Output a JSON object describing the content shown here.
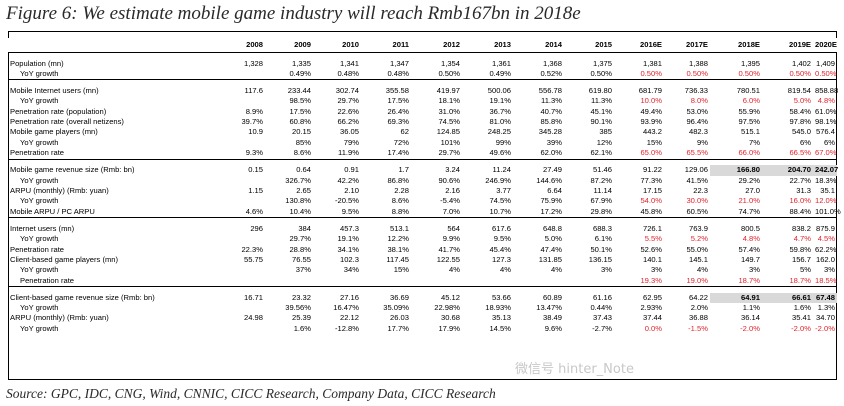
{
  "title": "Figure 6: We estimate mobile game industry will reach Rmb167bn in 2018e",
  "source": "Source:   GPC, IDC, CNG, Wind, CNNIC, CICC Research, Company Data, CICC Research",
  "watermark": "微信号 hinter_Note",
  "years": [
    "2008",
    "2009",
    "2010",
    "2011",
    "2012",
    "2013",
    "2014",
    "2015",
    "2016E",
    "2017E",
    "2018E",
    "2019E",
    "2020E"
  ],
  "colors": {
    "red": "#e0242d",
    "highlight": "#d9d9d9"
  },
  "sections": [
    {
      "rows": [
        {
          "label": "Population (mn)",
          "indent": false,
          "values": [
            "1,328",
            "1,335",
            "1,341",
            "1,347",
            "1,354",
            "1,361",
            "1,368",
            "1,375",
            "1,381",
            "1,388",
            "1,395",
            "1,402",
            "1,409"
          ]
        },
        {
          "label": "YoY growth",
          "indent": true,
          "values": [
            "",
            "0.49%",
            "0.48%",
            "0.48%",
            "0.50%",
            "0.49%",
            "0.52%",
            "0.50%",
            "0.50%",
            "0.50%",
            "0.50%",
            "0.50%",
            "0.50%"
          ]
        }
      ]
    },
    {
      "rows": [
        {
          "label": "Mobile Internet users (mn)",
          "indent": false,
          "values": [
            "117.6",
            "233.44",
            "302.74",
            "355.58",
            "419.97",
            "500.06",
            "556.78",
            "619.80",
            "681.79",
            "736.33",
            "780.51",
            "819.54",
            "858.88"
          ]
        },
        {
          "label": "YoY growth",
          "indent": true,
          "values": [
            "",
            "98.5%",
            "29.7%",
            "17.5%",
            "18.1%",
            "19.1%",
            "11.3%",
            "11.3%",
            "10.0%",
            "8.0%",
            "6.0%",
            "5.0%",
            "4.8%"
          ]
        },
        {
          "label": "Penetration rate (population)",
          "indent": false,
          "values": [
            "8.9%",
            "17.5%",
            "22.6%",
            "26.4%",
            "31.0%",
            "36.7%",
            "40.7%",
            "45.1%",
            "49.4%",
            "53.0%",
            "55.9%",
            "58.4%",
            "61.0%"
          ]
        },
        {
          "label": "Penetration rate (overall netizens)",
          "indent": false,
          "values": [
            "39.7%",
            "60.8%",
            "66.2%",
            "69.3%",
            "74.5%",
            "81.0%",
            "85.8%",
            "90.1%",
            "93.9%",
            "96.4%",
            "97.5%",
            "97.8%",
            "98.1%"
          ]
        },
        {
          "label": "Mobile game players (mn)",
          "indent": false,
          "values": [
            "10.9",
            "20.15",
            "36.05",
            "62",
            "124.85",
            "248.25",
            "345.28",
            "385",
            "443.2",
            "482.3",
            "515.1",
            "545.0",
            "576.4"
          ]
        },
        {
          "label": "YoY growth",
          "indent": true,
          "values": [
            "",
            "85%",
            "79%",
            "72%",
            "101%",
            "99%",
            "39%",
            "12%",
            "15%",
            "9%",
            "7%",
            "6%",
            "6%"
          ]
        },
        {
          "label": "Penetration rate",
          "indent": false,
          "values": [
            "9.3%",
            "8.6%",
            "11.9%",
            "17.4%",
            "29.7%",
            "49.6%",
            "62.0%",
            "62.1%",
            "65.0%",
            "65.5%",
            "66.0%",
            "66.5%",
            "67.0%"
          ]
        }
      ]
    },
    {
      "rows": [
        {
          "label": "Mobile game revenue size (Rmb: bn)",
          "indent": false,
          "values": [
            "0.15",
            "0.64",
            "0.91",
            "1.7",
            "3.24",
            "11.24",
            "27.49",
            "51.46",
            "91.22",
            "129.06",
            "166.80",
            "204.70",
            "242.07"
          ]
        },
        {
          "label": "YoY growth",
          "indent": true,
          "values": [
            "",
            "326.7%",
            "42.2%",
            "86.8%",
            "90.6%",
            "246.9%",
            "144.6%",
            "87.2%",
            "77.3%",
            "41.5%",
            "29.2%",
            "22.7%",
            "18.3%"
          ]
        },
        {
          "label": "ARPU (monthly) (Rmb: yuan)",
          "indent": false,
          "values": [
            "1.15",
            "2.65",
            "2.10",
            "2.28",
            "2.16",
            "3.77",
            "6.64",
            "11.14",
            "17.15",
            "22.3",
            "27.0",
            "31.3",
            "35.1"
          ]
        },
        {
          "label": "YoY growth",
          "indent": true,
          "values": [
            "",
            "130.8%",
            "-20.5%",
            "8.6%",
            "-5.4%",
            "74.5%",
            "75.9%",
            "67.9%",
            "54.0%",
            "30.0%",
            "21.0%",
            "16.0%",
            "12.0%"
          ]
        },
        {
          "label": "Mobile ARPU / PC ARPU",
          "indent": false,
          "values": [
            "4.6%",
            "10.4%",
            "9.5%",
            "8.8%",
            "7.0%",
            "10.7%",
            "17.2%",
            "29.8%",
            "45.8%",
            "60.5%",
            "74.7%",
            "88.4%",
            "101.0%"
          ]
        }
      ]
    },
    {
      "rows": [
        {
          "label": "Internet users (mn)",
          "indent": false,
          "values": [
            "296",
            "384",
            "457.3",
            "513.1",
            "564",
            "617.6",
            "648.8",
            "688.3",
            "726.1",
            "763.9",
            "800.5",
            "838.2",
            "875.9"
          ]
        },
        {
          "label": "YoY growth",
          "indent": true,
          "values": [
            "",
            "29.7%",
            "19.1%",
            "12.2%",
            "9.9%",
            "9.5%",
            "5.0%",
            "6.1%",
            "5.5%",
            "5.2%",
            "4.8%",
            "4.7%",
            "4.5%"
          ]
        },
        {
          "label": "Penetration rate",
          "indent": false,
          "values": [
            "22.3%",
            "28.8%",
            "34.1%",
            "38.1%",
            "41.7%",
            "45.4%",
            "47.4%",
            "50.1%",
            "52.6%",
            "55.0%",
            "57.4%",
            "59.8%",
            "62.2%"
          ]
        },
        {
          "label": "Client-based game players (mn)",
          "indent": false,
          "values": [
            "55.75",
            "76.55",
            "102.3",
            "117.45",
            "122.55",
            "127.3",
            "131.85",
            "136.15",
            "140.1",
            "145.1",
            "149.7",
            "156.7",
            "162.0"
          ]
        },
        {
          "label": "YoY growth",
          "indent": true,
          "values": [
            "",
            "37%",
            "34%",
            "15%",
            "4%",
            "4%",
            "4%",
            "3%",
            "3%",
            "4%",
            "3%",
            "5%",
            "3%"
          ]
        },
        {
          "label": "Penetration rate",
          "indent": true,
          "values": [
            "",
            "",
            "",
            "",
            "",
            "",
            "",
            "",
            "19.3%",
            "19.0%",
            "18.7%",
            "18.7%",
            "18.5%"
          ]
        }
      ]
    },
    {
      "rows": [
        {
          "label": "Client-based game revenue size (Rmb: bn)",
          "indent": false,
          "values": [
            "16.71",
            "23.32",
            "27.16",
            "36.69",
            "45.12",
            "53.66",
            "60.89",
            "61.16",
            "62.95",
            "64.22",
            "64.91",
            "66.61",
            "67.48"
          ]
        },
        {
          "label": "YoY growth",
          "indent": true,
          "values": [
            "",
            "39.56%",
            "16.47%",
            "35.09%",
            "22.98%",
            "18.93%",
            "13.47%",
            "0.44%",
            "2.93%",
            "2.0%",
            "1.1%",
            "1.6%",
            "1.3%"
          ]
        },
        {
          "label": "ARPU (monthly) (Rmb: yuan)",
          "indent": false,
          "values": [
            "24.98",
            "25.39",
            "22.12",
            "26.03",
            "30.68",
            "35.13",
            "38.49",
            "37.43",
            "37.44",
            "36.88",
            "36.14",
            "35.41",
            "34.70"
          ]
        },
        {
          "label": "YoY growth",
          "indent": true,
          "values": [
            "",
            "1.6%",
            "-12.8%",
            "17.7%",
            "17.9%",
            "14.5%",
            "9.6%",
            "-2.7%",
            "0.0%",
            "-1.5%",
            "-2.0%",
            "-2.0%",
            "-2.0%"
          ]
        }
      ]
    }
  ]
}
